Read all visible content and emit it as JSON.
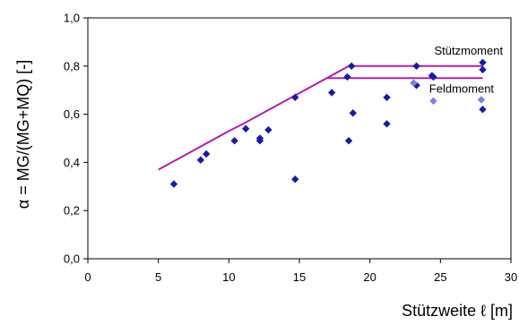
{
  "chart_data": {
    "type": "scatter",
    "xlabel": "Stützweite ℓ [m]",
    "ylabel": "α = MG/(MG+MQ) [-]",
    "xlim": [
      0,
      30
    ],
    "ylim": [
      0,
      1.0
    ],
    "x_ticks": [
      "0",
      "5",
      "10",
      "15",
      "20",
      "25",
      "30"
    ],
    "y_ticks": [
      "0,0",
      "0,2",
      "0,4",
      "0,6",
      "0,8",
      "1,0"
    ],
    "grid": false,
    "annotations": [
      {
        "text": "Stützmoment",
        "x": 27.0,
        "y": 0.848
      },
      {
        "text": "Feldmoment",
        "x": 26.5,
        "y": 0.69
      }
    ],
    "series": [
      {
        "kind": "line",
        "color": "#b020b0",
        "points": [
          [
            5.0,
            0.37
          ],
          [
            10.0,
            0.53
          ],
          [
            11.0,
            0.56
          ],
          [
            18.5,
            0.8
          ],
          [
            28.0,
            0.8
          ]
        ]
      },
      {
        "kind": "line",
        "color": "#b020b0",
        "points": [
          [
            17.0,
            0.75
          ],
          [
            28.0,
            0.75
          ]
        ]
      },
      {
        "kind": "points",
        "color": "#1a1aa8",
        "points": [
          [
            6.1,
            0.31
          ],
          [
            8.0,
            0.41
          ],
          [
            8.4,
            0.435
          ],
          [
            10.4,
            0.49
          ],
          [
            11.2,
            0.54
          ],
          [
            12.2,
            0.5
          ],
          [
            12.2,
            0.49
          ],
          [
            12.8,
            0.535
          ],
          [
            14.7,
            0.67
          ],
          [
            14.7,
            0.33
          ],
          [
            17.3,
            0.69
          ],
          [
            18.4,
            0.755
          ],
          [
            18.5,
            0.49
          ],
          [
            18.7,
            0.8
          ],
          [
            18.8,
            0.605
          ],
          [
            21.2,
            0.67
          ],
          [
            21.2,
            0.56
          ],
          [
            23.3,
            0.8
          ],
          [
            23.3,
            0.72
          ],
          [
            24.4,
            0.76
          ],
          [
            24.5,
            0.755
          ],
          [
            28.0,
            0.815
          ],
          [
            28.0,
            0.785
          ],
          [
            28.0,
            0.62
          ]
        ]
      },
      {
        "kind": "points",
        "color": "#8080e0",
        "points": [
          [
            23.1,
            0.73
          ],
          [
            24.5,
            0.655
          ],
          [
            27.9,
            0.66
          ]
        ]
      }
    ]
  }
}
